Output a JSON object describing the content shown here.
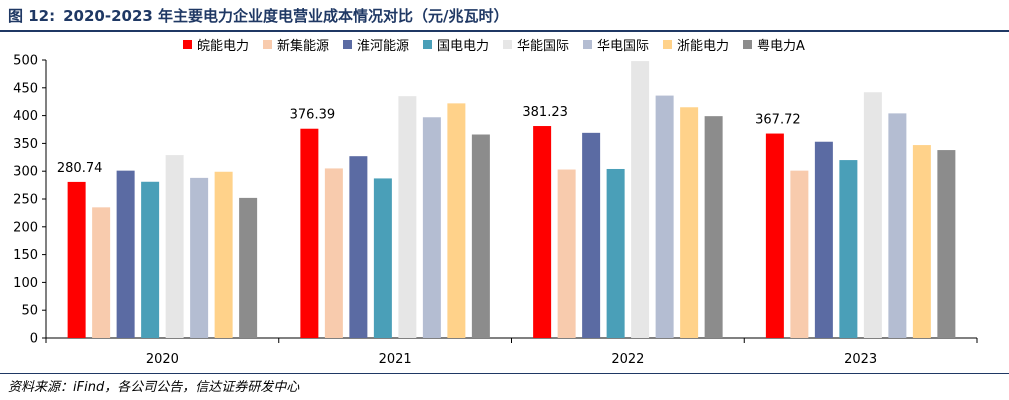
{
  "figure": {
    "number": "图 12:",
    "title": "2020-2023 年主要电力企业度电营业成本情况对比（元/兆瓦时）"
  },
  "source": "资料来源：iFind，各公司公告，信达证券研发中心",
  "chart_data": {
    "type": "bar",
    "categories": [
      "2020",
      "2021",
      "2022",
      "2023"
    ],
    "ylim": [
      0,
      500
    ],
    "yticks": [
      0,
      50,
      100,
      150,
      200,
      250,
      300,
      350,
      400,
      450,
      500
    ],
    "grid": false,
    "legend_position": "top",
    "series": [
      {
        "name": "皖能电力",
        "color": "#ff0000",
        "values": [
          280.74,
          376.39,
          381.23,
          367.72
        ]
      },
      {
        "name": "新集能源",
        "color": "#f8cbad",
        "values": [
          235,
          305,
          303,
          301
        ]
      },
      {
        "name": "淮河能源",
        "color": "#5b6ba3",
        "values": [
          301,
          327,
          369,
          353
        ]
      },
      {
        "name": "国电电力",
        "color": "#4a9fb8",
        "values": [
          281,
          287,
          304,
          320
        ]
      },
      {
        "name": "华能国际",
        "color": "#e6e6e6",
        "values": [
          329,
          435,
          498,
          442
        ]
      },
      {
        "name": "华电国际",
        "color": "#b4bdd2",
        "values": [
          288,
          397,
          436,
          404
        ]
      },
      {
        "name": "浙能电力",
        "color": "#ffd28a",
        "values": [
          299,
          422,
          415,
          347
        ]
      },
      {
        "name": "粤电力A",
        "color": "#8c8c8c",
        "values": [
          252,
          366,
          399,
          338
        ]
      }
    ],
    "data_labels": [
      {
        "series": 0,
        "category": 0,
        "text": "280.74"
      },
      {
        "series": 0,
        "category": 1,
        "text": "376.39"
      },
      {
        "series": 0,
        "category": 2,
        "text": "381.23"
      },
      {
        "series": 0,
        "category": 3,
        "text": "367.72"
      }
    ]
  }
}
